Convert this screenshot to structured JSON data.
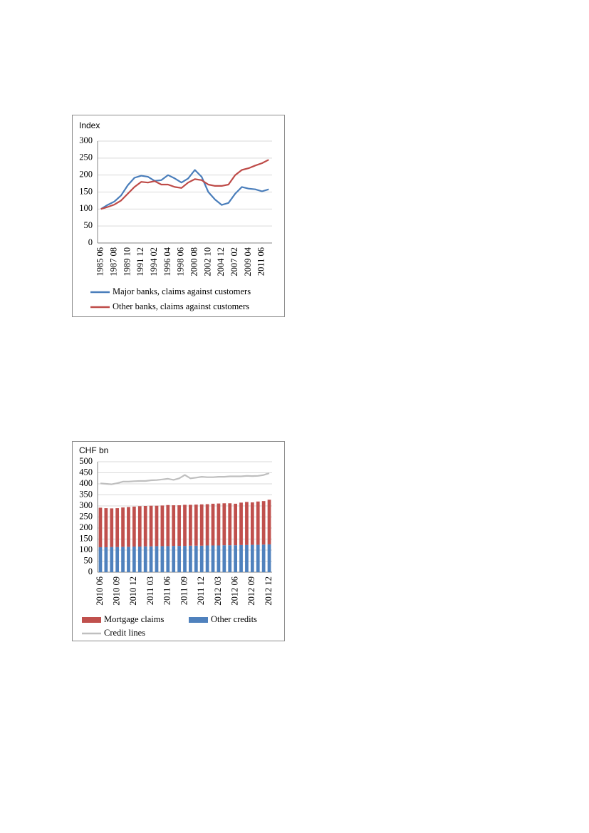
{
  "chart_data": [
    {
      "type": "line",
      "title": "Index",
      "categories": [
        "1985 06",
        null,
        "1987 08",
        null,
        "1989 10",
        null,
        "1991 12",
        null,
        "1994 02",
        null,
        "1996 04",
        null,
        "1998 06",
        null,
        "2000 08",
        null,
        "2002 10",
        null,
        "2004 12",
        null,
        "2007 02",
        null,
        "2009 04",
        null,
        "2011 06",
        null
      ],
      "series": [
        {
          "name": "Major banks, claims against customers",
          "color": "#4a7ebb",
          "values": [
            100,
            112,
            122,
            140,
            170,
            192,
            198,
            195,
            183,
            185,
            200,
            190,
            178,
            190,
            215,
            195,
            150,
            128,
            112,
            118,
            145,
            165,
            160,
            158,
            152,
            158
          ]
        },
        {
          "name": "Other banks, claims against customers",
          "color": "#be4b48",
          "values": [
            100,
            106,
            113,
            125,
            145,
            165,
            180,
            178,
            182,
            172,
            172,
            165,
            162,
            178,
            188,
            185,
            172,
            168,
            168,
            172,
            200,
            215,
            220,
            228,
            235,
            245
          ]
        }
      ],
      "ylim": [
        0,
        300
      ],
      "yticks": [
        0,
        50,
        100,
        150,
        200,
        250,
        300
      ],
      "grid": true
    },
    {
      "type": "bar",
      "title": "CHF bn",
      "stacked": true,
      "categories": [
        "2010 06",
        null,
        null,
        "2010 09",
        null,
        null,
        "2010 12",
        null,
        null,
        "2011 03",
        null,
        null,
        "2011 06",
        null,
        null,
        "2011 09",
        null,
        null,
        "2011 12",
        null,
        null,
        "2012 03",
        null,
        null,
        "2012 06",
        null,
        null,
        "2012 09",
        null,
        null,
        "2012 12"
      ],
      "series": [
        {
          "name": "Mortgage claims",
          "color": "#c0504d",
          "values": [
            179,
            177,
            175,
            176,
            178,
            180,
            181,
            183,
            183,
            184,
            183,
            184,
            186,
            184,
            184,
            186,
            185,
            186,
            187,
            187,
            189,
            190,
            190,
            190,
            188,
            192,
            195,
            192,
            196,
            197,
            202
          ]
        },
        {
          "name": "Other credits",
          "color": "#4f81bd",
          "values": [
            113,
            113,
            114,
            114,
            115,
            115,
            116,
            116,
            117,
            117,
            118,
            118,
            118,
            119,
            119,
            119,
            120,
            120,
            120,
            121,
            121,
            121,
            122,
            122,
            122,
            123,
            123,
            124,
            124,
            125,
            126
          ]
        },
        {
          "name": "Credit lines",
          "color": "#bfbfbf",
          "type": "line",
          "values": [
            402,
            400,
            398,
            403,
            410,
            410,
            412,
            413,
            413,
            416,
            417,
            420,
            423,
            418,
            425,
            440,
            425,
            428,
            432,
            430,
            430,
            432,
            432,
            434,
            434,
            434,
            436,
            435,
            436,
            440,
            448
          ]
        }
      ],
      "ylim": [
        0,
        500
      ],
      "yticks": [
        0,
        50,
        100,
        150,
        200,
        250,
        300,
        350,
        400,
        450,
        500
      ],
      "grid": true
    }
  ]
}
